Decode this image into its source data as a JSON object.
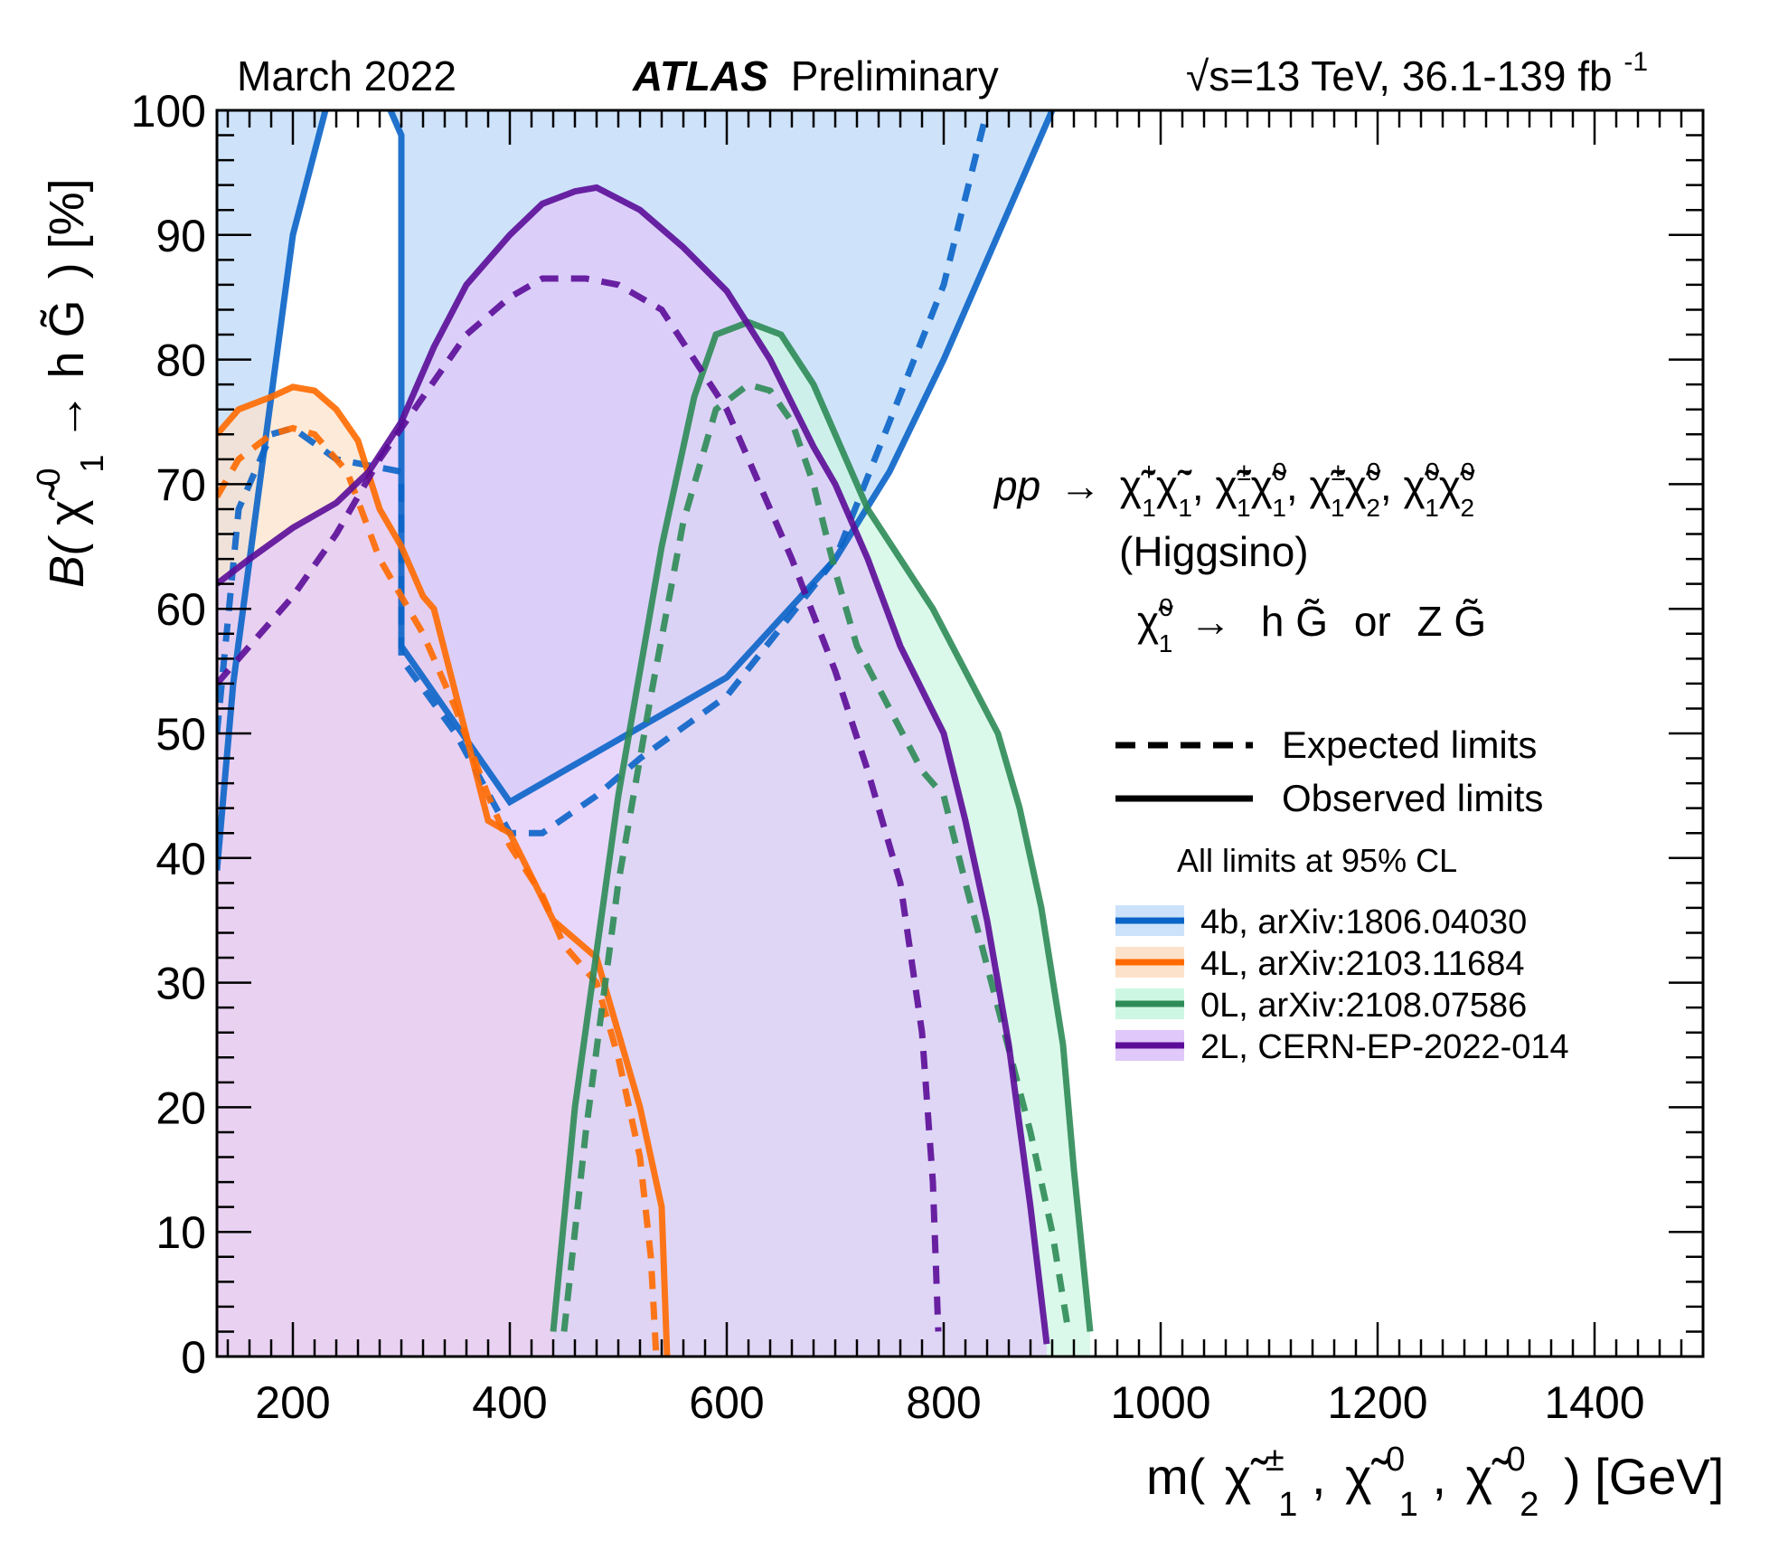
{
  "header": {
    "date": "March 2022",
    "experiment": "ATLAS",
    "status": "Preliminary",
    "energy_prefix": "√s=13 TeV, 36.1-139 fb",
    "energy_superscript": "-1"
  },
  "axes": {
    "y_prefix": "B(",
    "y_chi": "χ̃",
    "y_sup": "0",
    "y_sub": "1",
    "y_arrow": " → h",
    "y_G": "G̃",
    "y_suffix": ") [%]",
    "x_prefix": "m(",
    "x_chi": "χ̃",
    "x_sup_pm": "±",
    "x_sup_0": "0",
    "x_sub_1": "1",
    "x_sub_2": "2",
    "x_sep": ",",
    "x_suffix": ") [GeV]"
  },
  "annotations": {
    "process_pp": "pp",
    "process_arrow": "→",
    "process_pairs": [
      {
        "a_sup": "+",
        "a_sub": "1",
        "b_sup": "−",
        "b_sub": "1"
      },
      {
        "a_sup": "±",
        "a_sub": "1",
        "b_sup": "0",
        "b_sub": "1"
      },
      {
        "a_sup": "±",
        "a_sub": "1",
        "b_sup": "0",
        "b_sub": "2"
      },
      {
        "a_sup": "0",
        "a_sub": "1",
        "b_sup": "0",
        "b_sub": "2"
      }
    ],
    "chi_glyph": "χ̃",
    "higgsino": "(Higgsino)",
    "decay_arrow": "→",
    "decay_h": "h",
    "decay_or": "or",
    "decay_Z": "Z",
    "decay_G": "G̃",
    "decay_sup": "0",
    "decay_sub": "1",
    "legend_expected": "Expected limits",
    "legend_observed": "Observed limits",
    "cl_note": "All limits at 95% CL"
  },
  "chart_data": {
    "type": "area",
    "xlabel": "m( χ̃±1, χ̃01, χ̃02 ) [GeV]",
    "ylabel": "B(χ̃01 → hG̃) [%]",
    "xlim": [
      130,
      1500
    ],
    "ylim": [
      0,
      100
    ],
    "x_ticks": [
      200,
      400,
      600,
      800,
      1000,
      1200,
      1400
    ],
    "y_ticks": [
      0,
      10,
      20,
      30,
      40,
      50,
      60,
      70,
      80,
      90,
      100
    ],
    "legend_position": "right",
    "series": [
      {
        "name": "4b, arXiv:1806.04030",
        "color": "#0b64c8",
        "fill": "#cbe2fa",
        "observed": [
          [
            130,
            39
          ],
          [
            145,
            54
          ],
          [
            180,
            77
          ],
          [
            200,
            90
          ],
          [
            230,
            100
          ]
        ],
        "observed_2": [
          [
            290,
            100
          ],
          [
            300,
            98
          ],
          [
            300,
            57
          ],
          [
            400,
            44.5
          ],
          [
            600,
            54.5
          ],
          [
            700,
            64
          ],
          [
            750,
            71
          ],
          [
            800,
            80
          ],
          [
            830,
            86
          ],
          [
            900,
            100
          ]
        ],
        "expected": [
          [
            130,
            50
          ],
          [
            150,
            68
          ],
          [
            180,
            74
          ],
          [
            200,
            74.5
          ],
          [
            240,
            72
          ],
          [
            300,
            71
          ],
          [
            300,
            56
          ],
          [
            350,
            50
          ],
          [
            400,
            42
          ],
          [
            430,
            42
          ],
          [
            480,
            45
          ],
          [
            520,
            48
          ],
          [
            600,
            53
          ],
          [
            700,
            64
          ],
          [
            750,
            75
          ],
          [
            800,
            86
          ],
          [
            840,
            100
          ]
        ],
        "fill_region": [
          [
            130,
            39
          ],
          [
            145,
            54
          ],
          [
            180,
            77
          ],
          [
            200,
            90
          ],
          [
            230,
            100
          ],
          [
            130,
            100
          ]
        ],
        "fill_region_2": [
          [
            290,
            100
          ],
          [
            300,
            98
          ],
          [
            300,
            57
          ],
          [
            400,
            44.5
          ],
          [
            600,
            54.5
          ],
          [
            700,
            64
          ],
          [
            750,
            71
          ],
          [
            800,
            80
          ],
          [
            830,
            86
          ],
          [
            900,
            100
          ]
        ]
      },
      {
        "name": "4L, arXiv:2103.11684",
        "color": "#ff6a00",
        "fill": "#fde2cb",
        "observed": [
          [
            130,
            74
          ],
          [
            150,
            76
          ],
          [
            180,
            77
          ],
          [
            200,
            77.8
          ],
          [
            220,
            77.5
          ],
          [
            240,
            76
          ],
          [
            260,
            73.5
          ],
          [
            280,
            68
          ],
          [
            300,
            65
          ],
          [
            320,
            61
          ],
          [
            330,
            60
          ],
          [
            380,
            43
          ],
          [
            400,
            42
          ],
          [
            440,
            35
          ],
          [
            480,
            32
          ],
          [
            520,
            20
          ],
          [
            540,
            12
          ],
          [
            545,
            0
          ]
        ],
        "expected": [
          [
            130,
            69
          ],
          [
            150,
            72
          ],
          [
            180,
            74
          ],
          [
            200,
            74.5
          ],
          [
            220,
            74
          ],
          [
            250,
            71
          ],
          [
            280,
            64
          ],
          [
            320,
            58
          ],
          [
            350,
            52
          ],
          [
            380,
            45
          ],
          [
            400,
            41
          ],
          [
            430,
            37
          ],
          [
            450,
            33
          ],
          [
            480,
            30
          ],
          [
            500,
            24
          ],
          [
            520,
            16
          ],
          [
            530,
            8
          ],
          [
            535,
            0
          ]
        ]
      },
      {
        "name": "0L, arXiv:2108.07586",
        "color": "#2e8b57",
        "fill": "#cdf7e3",
        "observed": [
          [
            440,
            2
          ],
          [
            460,
            20
          ],
          [
            500,
            45
          ],
          [
            540,
            65
          ],
          [
            570,
            77
          ],
          [
            590,
            82
          ],
          [
            620,
            83
          ],
          [
            650,
            82
          ],
          [
            680,
            78
          ],
          [
            700,
            74
          ],
          [
            730,
            68
          ],
          [
            760,
            64
          ],
          [
            790,
            60
          ],
          [
            820,
            55
          ],
          [
            850,
            50
          ],
          [
            870,
            44
          ],
          [
            890,
            36
          ],
          [
            910,
            25
          ],
          [
            920,
            15
          ],
          [
            935,
            2
          ]
        ],
        "expected": [
          [
            450,
            2
          ],
          [
            470,
            18
          ],
          [
            500,
            38
          ],
          [
            530,
            53
          ],
          [
            560,
            67
          ],
          [
            590,
            76
          ],
          [
            620,
            78
          ],
          [
            640,
            77.5
          ],
          [
            660,
            75
          ],
          [
            680,
            70
          ],
          [
            700,
            63
          ],
          [
            720,
            57
          ],
          [
            750,
            52
          ],
          [
            780,
            47
          ],
          [
            800,
            45
          ],
          [
            820,
            38
          ],
          [
            850,
            28
          ],
          [
            880,
            18
          ],
          [
            900,
            10
          ],
          [
            915,
            2
          ]
        ]
      },
      {
        "name": "2L, CERN-EP-2022-014",
        "color": "#5b0c98",
        "fill": "#e0c8fa",
        "observed": [
          [
            130,
            62
          ],
          [
            160,
            64
          ],
          [
            200,
            66.5
          ],
          [
            240,
            68.5
          ],
          [
            270,
            71
          ],
          [
            300,
            75
          ],
          [
            330,
            81
          ],
          [
            360,
            86
          ],
          [
            400,
            90
          ],
          [
            430,
            92.5
          ],
          [
            460,
            93.5
          ],
          [
            480,
            93.8
          ],
          [
            520,
            92
          ],
          [
            560,
            89
          ],
          [
            600,
            85.5
          ],
          [
            640,
            80
          ],
          [
            680,
            73
          ],
          [
            700,
            70
          ],
          [
            730,
            64
          ],
          [
            760,
            57
          ],
          [
            800,
            50
          ],
          [
            820,
            43
          ],
          [
            840,
            35
          ],
          [
            860,
            25
          ],
          [
            880,
            12
          ],
          [
            895,
            1
          ]
        ],
        "expected": [
          [
            130,
            54
          ],
          [
            160,
            57
          ],
          [
            200,
            61
          ],
          [
            240,
            66
          ],
          [
            280,
            72
          ],
          [
            320,
            77
          ],
          [
            360,
            82
          ],
          [
            400,
            85
          ],
          [
            430,
            86.5
          ],
          [
            470,
            86.5
          ],
          [
            500,
            86
          ],
          [
            540,
            84
          ],
          [
            570,
            80
          ],
          [
            600,
            76
          ],
          [
            630,
            70
          ],
          [
            660,
            64
          ],
          [
            700,
            55
          ],
          [
            730,
            47
          ],
          [
            760,
            38
          ],
          [
            780,
            26
          ],
          [
            790,
            14
          ],
          [
            795,
            2
          ]
        ]
      }
    ]
  }
}
